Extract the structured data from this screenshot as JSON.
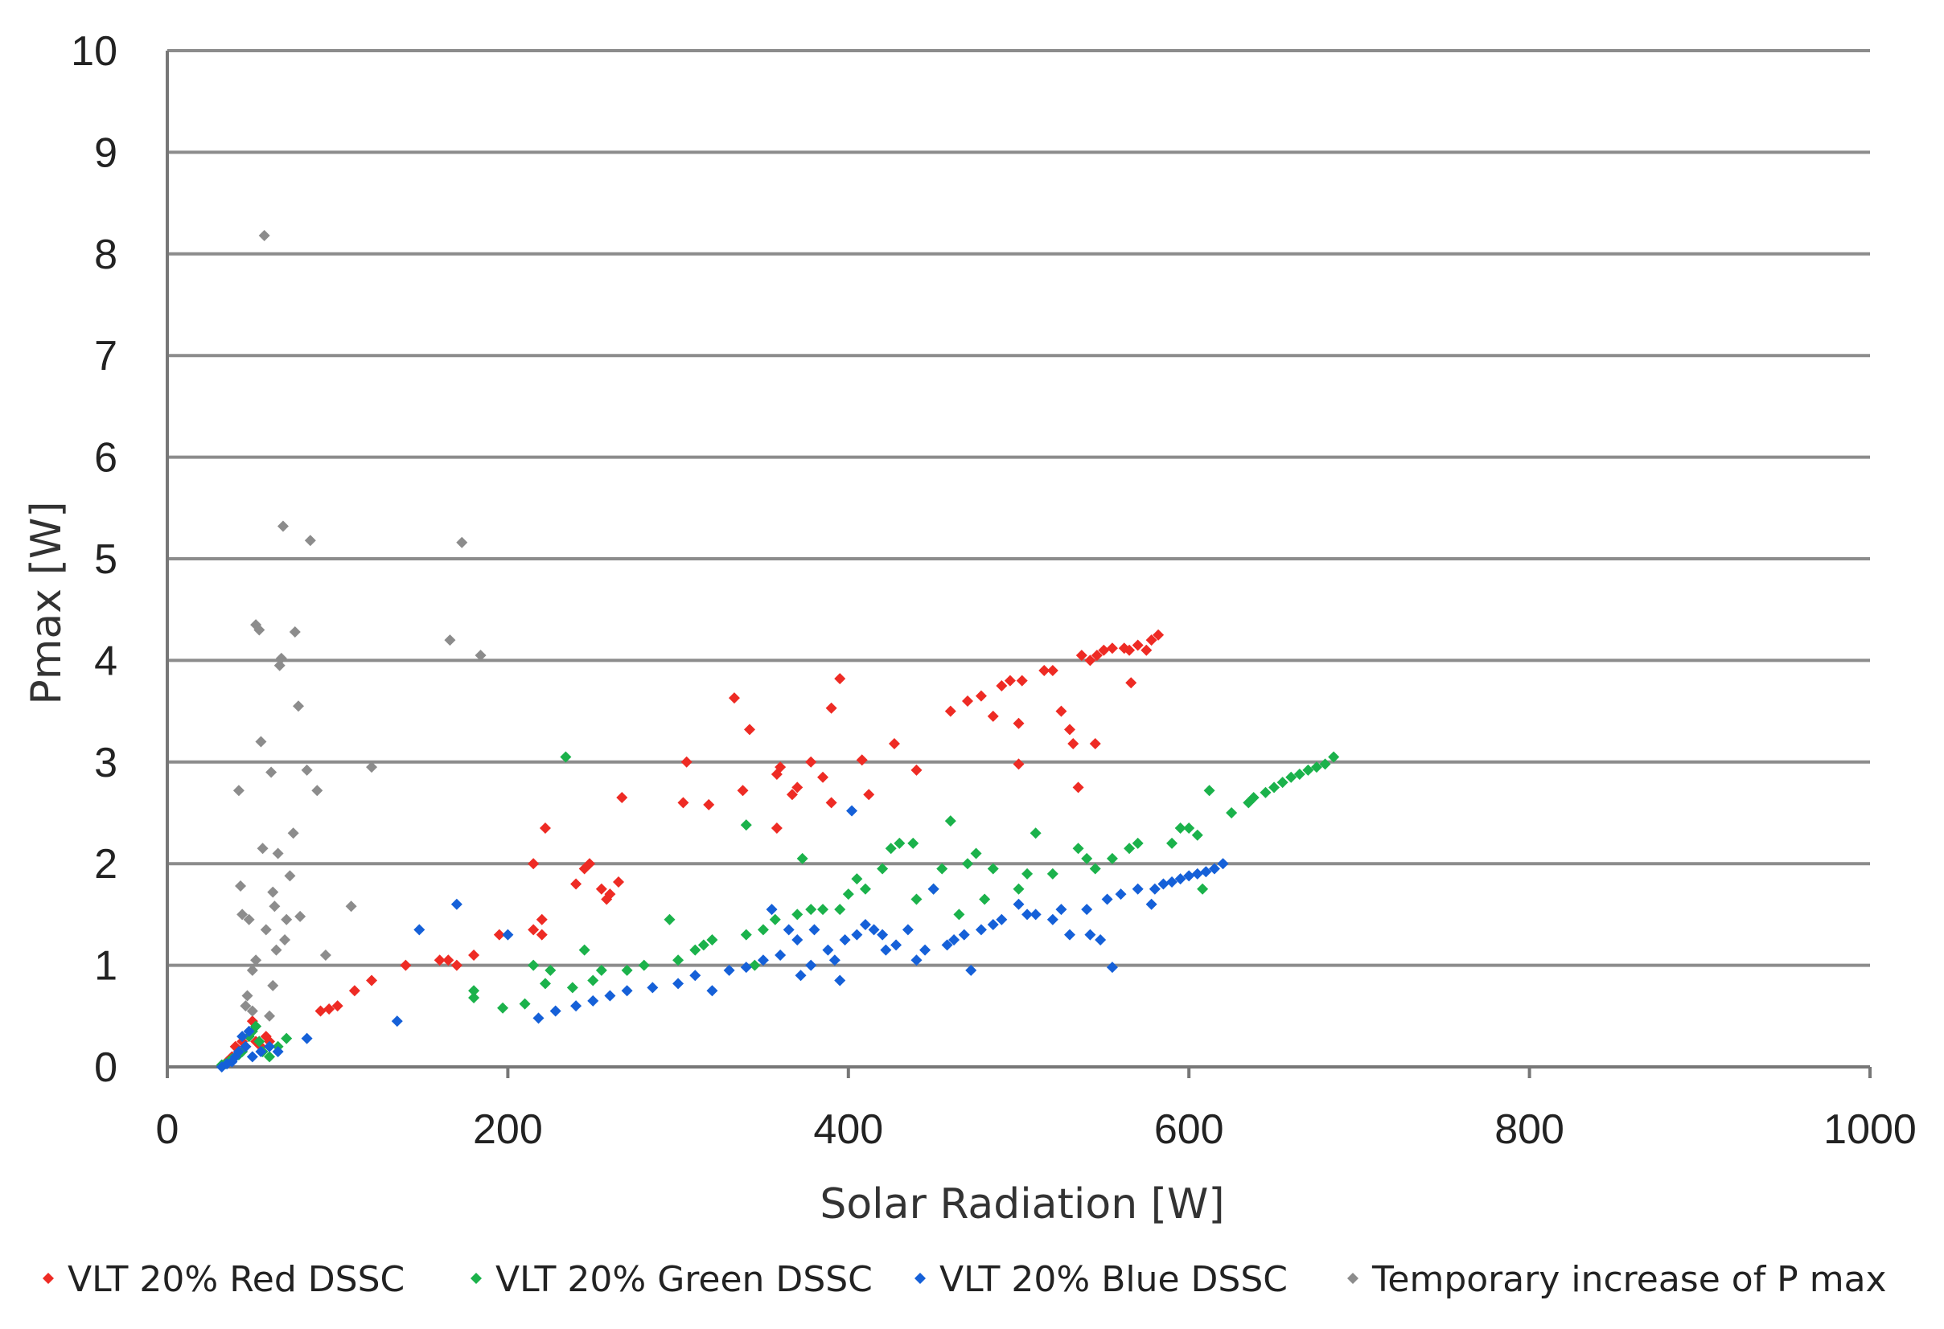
{
  "chart_data": {
    "type": "scatter",
    "title": "",
    "xlabel": "Solar Radiation [W]",
    "ylabel": "Pmax [W]",
    "xlim": [
      0,
      1000
    ],
    "ylim": [
      0,
      10
    ],
    "xticks": [
      0,
      200,
      400,
      600,
      800,
      1000
    ],
    "yticks": [
      0,
      1,
      2,
      3,
      4,
      5,
      6,
      7,
      8,
      9,
      10
    ],
    "grid": true,
    "legend_position": "bottom",
    "series": [
      {
        "name": "VLT 20% Red DSSC",
        "color": "#ee2b24",
        "points": [
          [
            35,
            0.05
          ],
          [
            38,
            0.1
          ],
          [
            40,
            0.2
          ],
          [
            42,
            0.15
          ],
          [
            44,
            0.25
          ],
          [
            46,
            0.2
          ],
          [
            48,
            0.3
          ],
          [
            50,
            0.45
          ],
          [
            52,
            0.25
          ],
          [
            55,
            0.2
          ],
          [
            58,
            0.3
          ],
          [
            60,
            0.25
          ],
          [
            90,
            0.55
          ],
          [
            95,
            0.57
          ],
          [
            100,
            0.6
          ],
          [
            110,
            0.75
          ],
          [
            120,
            0.85
          ],
          [
            140,
            1.0
          ],
          [
            160,
            1.05
          ],
          [
            165,
            1.05
          ],
          [
            170,
            1.0
          ],
          [
            180,
            1.1
          ],
          [
            195,
            1.3
          ],
          [
            215,
            1.35
          ],
          [
            215,
            2.0
          ],
          [
            220,
            1.45
          ],
          [
            220,
            1.3
          ],
          [
            222,
            2.35
          ],
          [
            240,
            1.8
          ],
          [
            245,
            1.95
          ],
          [
            248,
            2.0
          ],
          [
            255,
            1.75
          ],
          [
            258,
            1.65
          ],
          [
            260,
            1.7
          ],
          [
            265,
            1.82
          ],
          [
            267,
            2.65
          ],
          [
            303,
            2.6
          ],
          [
            305,
            3.0
          ],
          [
            318,
            2.58
          ],
          [
            333,
            3.63
          ],
          [
            338,
            2.72
          ],
          [
            342,
            3.32
          ],
          [
            358,
            2.35
          ],
          [
            358,
            2.88
          ],
          [
            360,
            2.95
          ],
          [
            367,
            2.68
          ],
          [
            370,
            2.75
          ],
          [
            378,
            3.0
          ],
          [
            385,
            2.85
          ],
          [
            390,
            2.6
          ],
          [
            390,
            3.53
          ],
          [
            395,
            3.82
          ],
          [
            408,
            3.02
          ],
          [
            412,
            2.68
          ],
          [
            427,
            3.18
          ],
          [
            440,
            2.92
          ],
          [
            460,
            3.5
          ],
          [
            470,
            3.6
          ],
          [
            478,
            3.65
          ],
          [
            485,
            3.45
          ],
          [
            490,
            3.75
          ],
          [
            495,
            3.8
          ],
          [
            500,
            3.38
          ],
          [
            502,
            3.8
          ],
          [
            500,
            2.98
          ],
          [
            515,
            3.9
          ],
          [
            520,
            3.9
          ],
          [
            525,
            3.5
          ],
          [
            530,
            3.32
          ],
          [
            532,
            3.18
          ],
          [
            535,
            2.75
          ],
          [
            537,
            4.05
          ],
          [
            542,
            4.0
          ],
          [
            545,
            3.18
          ],
          [
            546,
            4.05
          ],
          [
            550,
            4.1
          ],
          [
            555,
            4.12
          ],
          [
            562,
            4.12
          ],
          [
            565,
            4.1
          ],
          [
            566,
            3.78
          ],
          [
            570,
            4.15
          ],
          [
            575,
            4.1
          ],
          [
            578,
            4.2
          ],
          [
            582,
            4.25
          ]
        ]
      },
      {
        "name": "VLT 20% Green DSSC",
        "color": "#1bb24b",
        "points": [
          [
            32,
            0.02
          ],
          [
            34,
            0.03
          ],
          [
            36,
            0.05
          ],
          [
            38,
            0.08
          ],
          [
            40,
            0.1
          ],
          [
            42,
            0.12
          ],
          [
            44,
            0.15
          ],
          [
            46,
            0.2
          ],
          [
            48,
            0.3
          ],
          [
            50,
            0.35
          ],
          [
            52,
            0.4
          ],
          [
            54,
            0.25
          ],
          [
            56,
            0.15
          ],
          [
            60,
            0.1
          ],
          [
            65,
            0.2
          ],
          [
            70,
            0.28
          ],
          [
            180,
            0.68
          ],
          [
            180,
            0.75
          ],
          [
            197,
            0.58
          ],
          [
            210,
            0.62
          ],
          [
            215,
            1.0
          ],
          [
            222,
            0.82
          ],
          [
            225,
            0.95
          ],
          [
            234,
            3.05
          ],
          [
            238,
            0.78
          ],
          [
            245,
            1.15
          ],
          [
            250,
            0.85
          ],
          [
            255,
            0.95
          ],
          [
            270,
            0.95
          ],
          [
            280,
            1.0
          ],
          [
            295,
            1.45
          ],
          [
            300,
            1.05
          ],
          [
            310,
            1.15
          ],
          [
            315,
            1.2
          ],
          [
            320,
            1.25
          ],
          [
            340,
            1.3
          ],
          [
            340,
            2.38
          ],
          [
            345,
            1.0
          ],
          [
            350,
            1.35
          ],
          [
            357,
            1.45
          ],
          [
            370,
            1.5
          ],
          [
            373,
            2.05
          ],
          [
            378,
            1.55
          ],
          [
            385,
            1.55
          ],
          [
            395,
            1.55
          ],
          [
            400,
            1.7
          ],
          [
            405,
            1.85
          ],
          [
            410,
            1.75
          ],
          [
            420,
            1.95
          ],
          [
            425,
            2.15
          ],
          [
            430,
            2.2
          ],
          [
            438,
            2.2
          ],
          [
            440,
            1.65
          ],
          [
            450,
            1.75
          ],
          [
            455,
            1.95
          ],
          [
            460,
            2.42
          ],
          [
            465,
            1.5
          ],
          [
            470,
            2.0
          ],
          [
            475,
            2.1
          ],
          [
            480,
            1.65
          ],
          [
            485,
            1.95
          ],
          [
            500,
            1.75
          ],
          [
            505,
            1.9
          ],
          [
            510,
            2.3
          ],
          [
            520,
            1.9
          ],
          [
            535,
            2.15
          ],
          [
            540,
            2.05
          ],
          [
            545,
            1.95
          ],
          [
            555,
            2.05
          ],
          [
            565,
            2.15
          ],
          [
            570,
            2.2
          ],
          [
            590,
            2.2
          ],
          [
            595,
            2.35
          ],
          [
            600,
            2.35
          ],
          [
            605,
            2.28
          ],
          [
            608,
            1.75
          ],
          [
            612,
            2.72
          ],
          [
            625,
            2.5
          ],
          [
            635,
            2.6
          ],
          [
            638,
            2.65
          ],
          [
            645,
            2.7
          ],
          [
            650,
            2.75
          ],
          [
            655,
            2.8
          ],
          [
            660,
            2.85
          ],
          [
            665,
            2.88
          ],
          [
            670,
            2.92
          ],
          [
            675,
            2.95
          ],
          [
            680,
            2.98
          ],
          [
            685,
            3.05
          ]
        ]
      },
      {
        "name": "VLT 20% Blue DSSC",
        "color": "#1560d8",
        "points": [
          [
            32,
            0.0
          ],
          [
            35,
            0.03
          ],
          [
            38,
            0.05
          ],
          [
            40,
            0.1
          ],
          [
            42,
            0.15
          ],
          [
            44,
            0.3
          ],
          [
            46,
            0.2
          ],
          [
            48,
            0.35
          ],
          [
            50,
            0.1
          ],
          [
            55,
            0.15
          ],
          [
            60,
            0.2
          ],
          [
            65,
            0.15
          ],
          [
            82,
            0.28
          ],
          [
            135,
            0.45
          ],
          [
            148,
            1.35
          ],
          [
            170,
            1.6
          ],
          [
            200,
            1.3
          ],
          [
            218,
            0.48
          ],
          [
            228,
            0.55
          ],
          [
            240,
            0.6
          ],
          [
            250,
            0.65
          ],
          [
            260,
            0.7
          ],
          [
            270,
            0.75
          ],
          [
            285,
            0.78
          ],
          [
            300,
            0.82
          ],
          [
            310,
            0.9
          ],
          [
            320,
            0.75
          ],
          [
            330,
            0.95
          ],
          [
            340,
            0.98
          ],
          [
            350,
            1.05
          ],
          [
            355,
            1.55
          ],
          [
            360,
            1.1
          ],
          [
            365,
            1.35
          ],
          [
            370,
            1.25
          ],
          [
            372,
            0.9
          ],
          [
            378,
            1.0
          ],
          [
            380,
            1.35
          ],
          [
            388,
            1.15
          ],
          [
            392,
            1.05
          ],
          [
            395,
            0.85
          ],
          [
            398,
            1.25
          ],
          [
            402,
            2.52
          ],
          [
            405,
            1.3
          ],
          [
            410,
            1.4
          ],
          [
            415,
            1.35
          ],
          [
            420,
            1.3
          ],
          [
            422,
            1.15
          ],
          [
            428,
            1.2
          ],
          [
            435,
            1.35
          ],
          [
            440,
            1.05
          ],
          [
            445,
            1.15
          ],
          [
            450,
            1.75
          ],
          [
            458,
            1.2
          ],
          [
            462,
            1.25
          ],
          [
            468,
            1.3
          ],
          [
            472,
            0.95
          ],
          [
            478,
            1.35
          ],
          [
            485,
            1.4
          ],
          [
            490,
            1.45
          ],
          [
            500,
            1.6
          ],
          [
            505,
            1.5
          ],
          [
            510,
            1.5
          ],
          [
            520,
            1.45
          ],
          [
            525,
            1.55
          ],
          [
            530,
            1.3
          ],
          [
            540,
            1.55
          ],
          [
            542,
            1.3
          ],
          [
            548,
            1.25
          ],
          [
            552,
            1.65
          ],
          [
            555,
            0.98
          ],
          [
            560,
            1.7
          ],
          [
            570,
            1.75
          ],
          [
            578,
            1.6
          ],
          [
            580,
            1.75
          ],
          [
            585,
            1.8
          ],
          [
            590,
            1.82
          ],
          [
            595,
            1.85
          ],
          [
            600,
            1.88
          ],
          [
            605,
            1.9
          ],
          [
            610,
            1.92
          ],
          [
            615,
            1.95
          ],
          [
            620,
            2.0
          ]
        ]
      },
      {
        "name": "Temporary increase of P max",
        "color": "#8c8c8c",
        "points": [
          [
            42,
            2.72
          ],
          [
            43,
            1.78
          ],
          [
            44,
            1.5
          ],
          [
            46,
            0.6
          ],
          [
            47,
            0.7
          ],
          [
            48,
            1.45
          ],
          [
            50,
            0.95
          ],
          [
            50,
            0.55
          ],
          [
            52,
            1.05
          ],
          [
            52,
            4.35
          ],
          [
            54,
            4.3
          ],
          [
            55,
            3.2
          ],
          [
            56,
            2.15
          ],
          [
            57,
            8.18
          ],
          [
            58,
            1.35
          ],
          [
            60,
            0.5
          ],
          [
            61,
            2.9
          ],
          [
            62,
            1.72
          ],
          [
            62,
            0.8
          ],
          [
            63,
            1.58
          ],
          [
            64,
            1.15
          ],
          [
            65,
            2.1
          ],
          [
            66,
            3.95
          ],
          [
            67,
            4.02
          ],
          [
            68,
            5.32
          ],
          [
            69,
            1.25
          ],
          [
            70,
            1.45
          ],
          [
            72,
            1.88
          ],
          [
            74,
            2.3
          ],
          [
            75,
            4.28
          ],
          [
            77,
            3.55
          ],
          [
            78,
            1.48
          ],
          [
            82,
            2.92
          ],
          [
            84,
            5.18
          ],
          [
            88,
            2.72
          ],
          [
            93,
            1.1
          ],
          [
            108,
            1.58
          ],
          [
            120,
            2.95
          ],
          [
            166,
            4.2
          ],
          [
            173,
            5.16
          ],
          [
            184,
            4.05
          ]
        ]
      }
    ]
  }
}
